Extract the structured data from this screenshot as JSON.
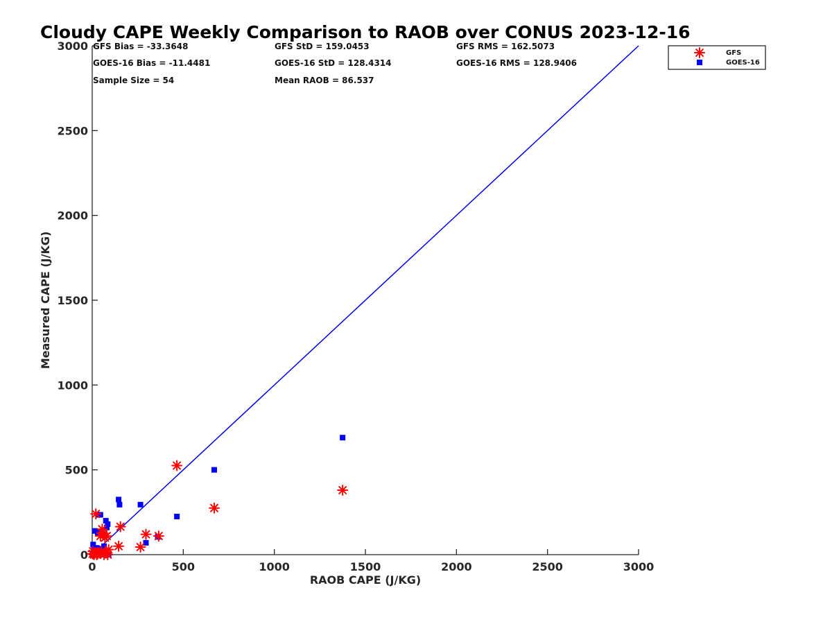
{
  "chart_data": {
    "type": "scatter",
    "title": "Cloudy CAPE Weekly Comparison to RAOB over CONUS 2023-12-16",
    "xlabel": "RAOB CAPE (J/KG)",
    "ylabel": "Measured CAPE (J/KG)",
    "xlim": [
      0,
      3000
    ],
    "ylim": [
      0,
      3000
    ],
    "xticks": [
      0,
      500,
      1000,
      1500,
      2000,
      2500,
      3000
    ],
    "yticks": [
      0,
      500,
      1000,
      1500,
      2000,
      2500,
      3000
    ],
    "grid": false,
    "legend_position": "top-right",
    "stats": [
      [
        "GFS Bias = -33.3648",
        "GFS StD = 159.0453",
        "GFS RMS = 162.5073"
      ],
      [
        "GOES-16 Bias = -11.4481",
        "GOES-16 StD = 128.4314",
        "GOES-16 RMS = 128.9406"
      ],
      [
        "Sample Size = 54",
        "Mean RAOB = 86.537",
        ""
      ]
    ],
    "reference_line": {
      "x": [
        0,
        3000
      ],
      "y": [
        0,
        3000
      ],
      "color": "#0000ee"
    },
    "series": [
      {
        "name": "GFS",
        "marker": "asterisk",
        "color": "#ff0000",
        "points": [
          [
            2,
            5
          ],
          [
            5,
            20
          ],
          [
            10,
            0
          ],
          [
            15,
            10
          ],
          [
            20,
            240
          ],
          [
            25,
            0
          ],
          [
            30,
            5
          ],
          [
            40,
            10
          ],
          [
            45,
            110
          ],
          [
            50,
            20
          ],
          [
            55,
            150
          ],
          [
            60,
            125
          ],
          [
            65,
            0
          ],
          [
            70,
            100
          ],
          [
            75,
            10
          ],
          [
            80,
            110
          ],
          [
            85,
            0
          ],
          [
            90,
            30
          ],
          [
            145,
            50
          ],
          [
            155,
            165
          ],
          [
            265,
            45
          ],
          [
            295,
            120
          ],
          [
            365,
            110
          ],
          [
            465,
            525
          ],
          [
            670,
            275
          ],
          [
            1375,
            380
          ]
        ]
      },
      {
        "name": "GOES-16",
        "marker": "square",
        "color": "#0000ff",
        "points": [
          [
            3,
            0
          ],
          [
            5,
            60
          ],
          [
            8,
            10
          ],
          [
            10,
            30
          ],
          [
            15,
            140
          ],
          [
            20,
            0
          ],
          [
            25,
            40
          ],
          [
            30,
            130
          ],
          [
            35,
            235
          ],
          [
            40,
            0
          ],
          [
            45,
            235
          ],
          [
            50,
            10
          ],
          [
            55,
            35
          ],
          [
            60,
            0
          ],
          [
            65,
            50
          ],
          [
            70,
            10
          ],
          [
            75,
            200
          ],
          [
            80,
            160
          ],
          [
            85,
            180
          ],
          [
            90,
            0
          ],
          [
            145,
            325
          ],
          [
            150,
            295
          ],
          [
            265,
            295
          ],
          [
            295,
            70
          ],
          [
            360,
            105
          ],
          [
            465,
            225
          ],
          [
            670,
            500
          ],
          [
            1375,
            690
          ]
        ]
      }
    ]
  }
}
